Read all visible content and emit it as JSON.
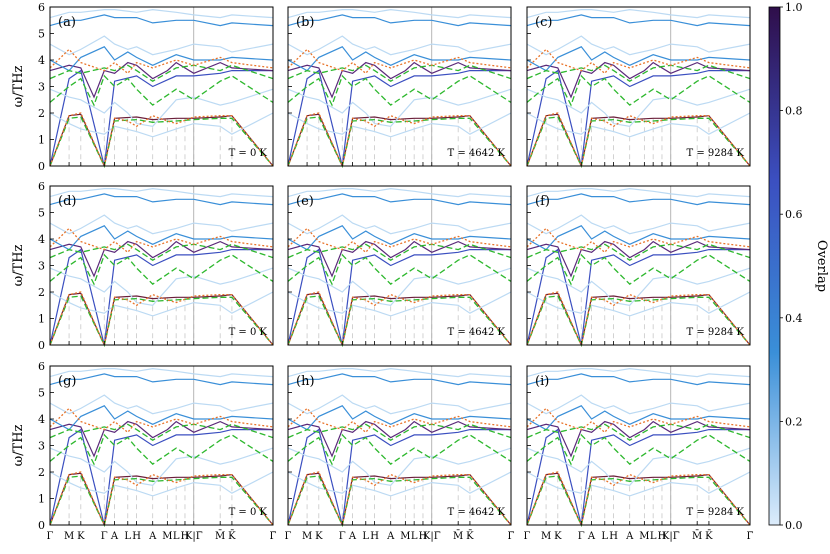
{
  "chart_data": {
    "type": "line",
    "ylabel": "ω/THz",
    "ylim": [
      0,
      6
    ],
    "yticks": [
      "0",
      "1",
      "2",
      "3",
      "4",
      "5",
      "6"
    ],
    "xticks": [
      "Γ",
      "M",
      "K",
      "Γ",
      "A",
      "L",
      "H",
      "A",
      "M",
      "L",
      "H",
      "K|Γ̄",
      "M̄",
      "K̄",
      "Γ̄"
    ],
    "xtick_positions": [
      0,
      0.13,
      0.21,
      0.37,
      0.44,
      0.53,
      0.59,
      0.7,
      0.8,
      0.86,
      0.92,
      0.98,
      1.16,
      1.24,
      1.52
    ],
    "x_max": 1.52,
    "grid": "vertical dashed at high-symmetry points",
    "panels": [
      {
        "label": "(a)",
        "temperature": "T = 0 K"
      },
      {
        "label": "(b)",
        "temperature": "T = 4642 K"
      },
      {
        "label": "(c)",
        "temperature": "T = 9284 K"
      },
      {
        "label": "(d)",
        "temperature": "T = 0 K"
      },
      {
        "label": "(e)",
        "temperature": "T = 4642 K"
      },
      {
        "label": "(f)",
        "temperature": "T = 9284 K"
      },
      {
        "label": "(g)",
        "temperature": "T = 0 K"
      },
      {
        "label": "(h)",
        "temperature": "T = 4642 K"
      },
      {
        "label": "(i)",
        "temperature": "T = 9284 K"
      }
    ],
    "colorbar": {
      "label": "Overlap",
      "range": [
        0,
        1
      ],
      "ticks": [
        "0.0",
        "0.2",
        "0.4",
        "0.6",
        "0.8",
        "1.0"
      ],
      "colors": [
        "#dcecfb",
        "#3a8fd8",
        "#3b4fc0",
        "#2f0e4a"
      ]
    },
    "series": [
      {
        "style": "solid",
        "color": "#6b1f3a",
        "points": [
          [
            0,
            0
          ],
          [
            0.13,
            1.9
          ],
          [
            0.21,
            1.95
          ],
          [
            0.37,
            0
          ],
          [
            0.44,
            1.8
          ],
          [
            0.59,
            1.85
          ],
          [
            0.7,
            1.75
          ],
          [
            0.86,
            1.8
          ],
          [
            0.98,
            1.8
          ],
          [
            1.16,
            1.85
          ],
          [
            1.24,
            1.9
          ],
          [
            1.52,
            0
          ]
        ]
      },
      {
        "style": "solid",
        "color": "#3b4fc0",
        "points": [
          [
            0,
            0
          ],
          [
            0.13,
            3.3
          ],
          [
            0.21,
            3.6
          ],
          [
            0.37,
            0
          ],
          [
            0.44,
            3.2
          ],
          [
            0.59,
            3.4
          ],
          [
            0.7,
            3.0
          ],
          [
            0.86,
            3.4
          ],
          [
            0.98,
            3.4
          ],
          [
            1.16,
            3.5
          ],
          [
            1.24,
            3.6
          ],
          [
            1.52,
            3.6
          ]
        ]
      },
      {
        "style": "solid",
        "color": "#5b2a7a",
        "points": [
          [
            0,
            3.6
          ],
          [
            0.13,
            3.8
          ],
          [
            0.21,
            3.7
          ],
          [
            0.3,
            2.6
          ],
          [
            0.37,
            3.6
          ],
          [
            0.44,
            3.5
          ],
          [
            0.53,
            3.9
          ],
          [
            0.59,
            3.8
          ],
          [
            0.7,
            3.3
          ],
          [
            0.8,
            3.6
          ],
          [
            0.86,
            3.9
          ],
          [
            0.98,
            3.5
          ],
          [
            1.16,
            3.9
          ],
          [
            1.24,
            3.7
          ],
          [
            1.52,
            3.6
          ]
        ]
      },
      {
        "style": "solid",
        "color": "#3a8fd8",
        "points": [
          [
            0,
            4.0
          ],
          [
            0.13,
            3.6
          ],
          [
            0.21,
            4.1
          ],
          [
            0.37,
            4.5
          ],
          [
            0.44,
            4.0
          ],
          [
            0.53,
            4.3
          ],
          [
            0.59,
            4.1
          ],
          [
            0.7,
            3.8
          ],
          [
            0.86,
            4.2
          ],
          [
            0.98,
            4.0
          ],
          [
            1.16,
            4.0
          ],
          [
            1.24,
            4.1
          ],
          [
            1.52,
            4.0
          ]
        ]
      },
      {
        "style": "solid",
        "color": "#3a8fd8",
        "points": [
          [
            0,
            5.3
          ],
          [
            0.13,
            5.5
          ],
          [
            0.21,
            5.5
          ],
          [
            0.37,
            5.7
          ],
          [
            0.44,
            5.6
          ],
          [
            0.59,
            5.6
          ],
          [
            0.7,
            5.4
          ],
          [
            0.86,
            5.5
          ],
          [
            0.98,
            5.5
          ],
          [
            1.16,
            5.3
          ],
          [
            1.24,
            5.4
          ],
          [
            1.52,
            5.3
          ]
        ]
      },
      {
        "style": "solid",
        "color": "#bcdaf3",
        "points": [
          [
            0,
            5.6
          ],
          [
            0.13,
            5.8
          ],
          [
            0.21,
            5.8
          ],
          [
            0.37,
            5.9
          ],
          [
            0.44,
            5.9
          ],
          [
            0.59,
            5.8
          ],
          [
            0.7,
            5.9
          ],
          [
            0.86,
            5.8
          ],
          [
            0.98,
            5.7
          ],
          [
            1.16,
            5.6
          ],
          [
            1.24,
            5.7
          ],
          [
            1.52,
            5.6
          ]
        ]
      },
      {
        "style": "solid",
        "color": "#bcdaf3",
        "points": [
          [
            0,
            4.6
          ],
          [
            0.13,
            4.2
          ],
          [
            0.21,
            4.4
          ],
          [
            0.37,
            4.9
          ],
          [
            0.44,
            4.6
          ],
          [
            0.53,
            4.4
          ],
          [
            0.59,
            4.5
          ],
          [
            0.7,
            4.2
          ],
          [
            0.86,
            4.4
          ],
          [
            0.98,
            4.6
          ],
          [
            1.16,
            4.5
          ],
          [
            1.24,
            4.3
          ],
          [
            1.52,
            4.6
          ]
        ]
      },
      {
        "style": "solid",
        "color": "#bcdaf3",
        "points": [
          [
            0,
            2.9
          ],
          [
            0.13,
            2.6
          ],
          [
            0.21,
            2.5
          ],
          [
            0.37,
            2.0
          ],
          [
            0.44,
            2.4
          ],
          [
            0.53,
            2.0
          ],
          [
            0.59,
            1.6
          ],
          [
            0.7,
            1.5
          ],
          [
            0.86,
            2.5
          ],
          [
            0.98,
            2.6
          ],
          [
            1.16,
            2.3
          ],
          [
            1.24,
            2.4
          ],
          [
            1.52,
            2.9
          ]
        ]
      },
      {
        "style": "solid",
        "color": "#bcdaf3",
        "points": [
          [
            0,
            2.0
          ],
          [
            0.13,
            1.6
          ],
          [
            0.21,
            1.4
          ],
          [
            0.37,
            1.2
          ],
          [
            0.44,
            1.5
          ],
          [
            0.59,
            1.3
          ],
          [
            0.7,
            1.1
          ],
          [
            0.86,
            1.4
          ],
          [
            0.98,
            1.6
          ],
          [
            1.16,
            1.5
          ],
          [
            1.24,
            1.2
          ],
          [
            1.52,
            2.0
          ]
        ]
      },
      {
        "style": "dashed",
        "color": "#2eb82e",
        "points": [
          [
            0,
            0
          ],
          [
            0.13,
            1.8
          ],
          [
            0.21,
            1.85
          ],
          [
            0.37,
            0
          ],
          [
            0.44,
            1.7
          ],
          [
            0.59,
            1.75
          ],
          [
            0.7,
            1.65
          ],
          [
            0.86,
            1.7
          ],
          [
            0.98,
            1.75
          ],
          [
            1.16,
            1.8
          ],
          [
            1.24,
            1.8
          ],
          [
            1.52,
            0
          ]
        ]
      },
      {
        "style": "dashed",
        "color": "#2eb82e",
        "points": [
          [
            0,
            2.4
          ],
          [
            0.13,
            3.0
          ],
          [
            0.21,
            3.3
          ],
          [
            0.3,
            2.3
          ],
          [
            0.37,
            3.4
          ],
          [
            0.44,
            3.0
          ],
          [
            0.53,
            3.3
          ],
          [
            0.59,
            2.9
          ],
          [
            0.7,
            2.3
          ],
          [
            0.86,
            2.9
          ],
          [
            0.98,
            2.5
          ],
          [
            1.16,
            3.2
          ],
          [
            1.24,
            3.4
          ],
          [
            1.52,
            2.4
          ]
        ]
      },
      {
        "style": "dashed",
        "color": "#2eb82e",
        "points": [
          [
            0,
            3.3
          ],
          [
            0.13,
            3.6
          ],
          [
            0.21,
            3.5
          ],
          [
            0.37,
            3.7
          ],
          [
            0.44,
            3.6
          ],
          [
            0.53,
            3.8
          ],
          [
            0.59,
            3.6
          ],
          [
            0.7,
            3.2
          ],
          [
            0.86,
            3.7
          ],
          [
            0.98,
            3.8
          ],
          [
            1.16,
            3.6
          ],
          [
            1.24,
            3.8
          ],
          [
            1.52,
            3.3
          ]
        ]
      },
      {
        "style": "dotted",
        "color": "#e8742a",
        "points": [
          [
            0,
            0
          ],
          [
            0.13,
            1.9
          ],
          [
            0.21,
            2.0
          ],
          [
            0.37,
            0
          ],
          [
            0.44,
            1.8
          ],
          [
            0.53,
            1.7
          ],
          [
            0.59,
            1.5
          ],
          [
            0.7,
            1.9
          ],
          [
            0.8,
            1.7
          ],
          [
            0.86,
            1.6
          ],
          [
            0.98,
            1.85
          ],
          [
            1.16,
            1.9
          ],
          [
            1.24,
            1.9
          ],
          [
            1.52,
            0
          ]
        ]
      },
      {
        "style": "dotted",
        "color": "#e8742a",
        "points": [
          [
            0,
            3.7
          ],
          [
            0.13,
            4.4
          ],
          [
            0.21,
            3.9
          ],
          [
            0.37,
            3.6
          ],
          [
            0.44,
            3.9
          ],
          [
            0.53,
            3.5
          ],
          [
            0.59,
            3.9
          ],
          [
            0.7,
            3.7
          ],
          [
            0.86,
            4.0
          ],
          [
            0.98,
            3.8
          ],
          [
            1.16,
            4.1
          ],
          [
            1.24,
            3.9
          ],
          [
            1.52,
            3.7
          ]
        ]
      }
    ]
  }
}
